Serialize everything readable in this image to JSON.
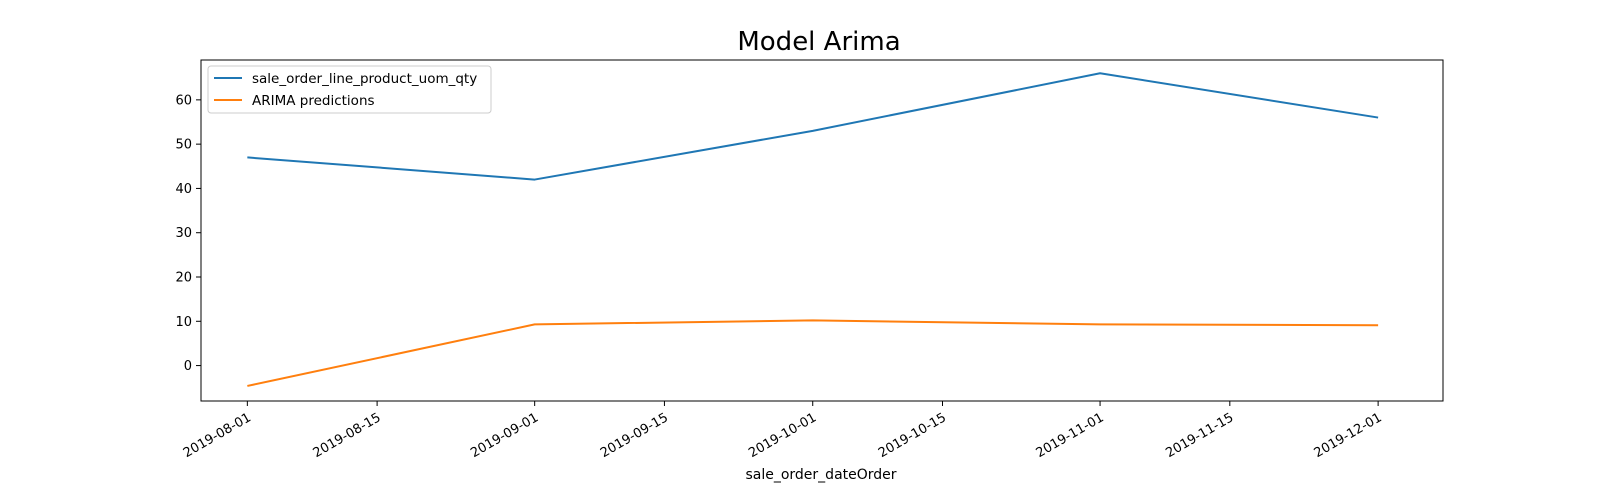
{
  "chart_data": {
    "type": "line",
    "title": "Model Arima",
    "xlabel": "sale_order_dateOrder",
    "ylabel": "",
    "x": [
      "2019-08-01",
      "2019-09-01",
      "2019-10-01",
      "2019-11-01",
      "2019-12-01"
    ],
    "series": [
      {
        "name": "sale_order_line_product_uom_qty",
        "color": "#1f77b4",
        "values": [
          47,
          42,
          53,
          66,
          56
        ]
      },
      {
        "name": "ARIMA predictions",
        "color": "#ff7f0e",
        "values": [
          -4.6,
          9.3,
          10.2,
          9.3,
          9.1
        ]
      }
    ],
    "xlim": [
      "2019-07-27",
      "2019-12-08"
    ],
    "ylim": [
      -8,
      69
    ],
    "yticks": [
      0,
      10,
      20,
      30,
      40,
      50,
      60
    ],
    "xticks": [
      "2019-08-01",
      "2019-08-15",
      "2019-09-01",
      "2019-09-15",
      "2019-10-01",
      "2019-10-15",
      "2019-11-01",
      "2019-11-15",
      "2019-12-01"
    ],
    "grid": false,
    "legend_position": "top-left"
  }
}
